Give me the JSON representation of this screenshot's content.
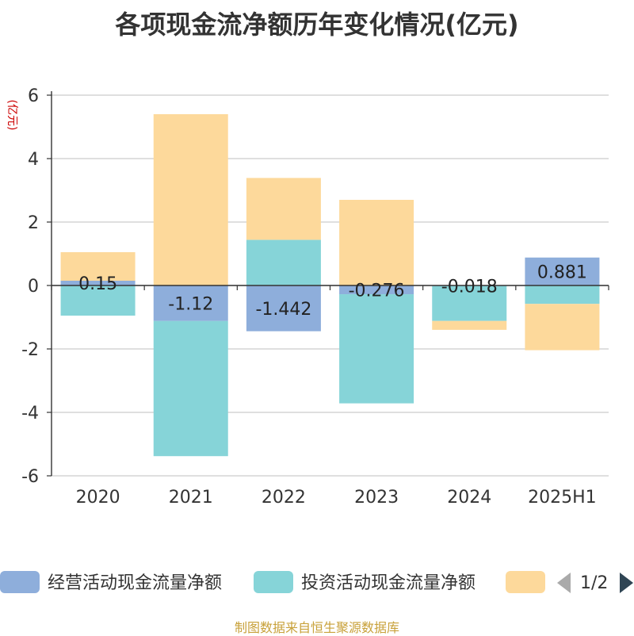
{
  "title": "各项现金流净额历年变化情况(亿元)",
  "source": "制图数据来自恒生聚源数据库",
  "legend": {
    "page": "1/2"
  },
  "chart_data": {
    "type": "bar",
    "stacked": true,
    "title": "各项现金流净额历年变化情况(亿元)",
    "ylabel": "(亿元)",
    "ylim": [
      -6,
      6
    ],
    "yticks": [
      6,
      4,
      2,
      0,
      -2,
      -4,
      -6
    ],
    "categories": [
      "2020",
      "2021",
      "2022",
      "2023",
      "2024",
      "2025H1"
    ],
    "grid": true,
    "legend_position": "bottom",
    "series": [
      {
        "name": "经营活动现金流量净额",
        "color": "#8eaedb",
        "values": [
          0.15,
          -1.12,
          -1.442,
          -0.276,
          -0.018,
          0.881
        ],
        "labels": [
          "0.15",
          "-1.12",
          "-1.442",
          "-0.276",
          "-0.018",
          "0.881"
        ]
      },
      {
        "name": "投资活动现金流量净额",
        "color": "#86d4d8",
        "values": [
          -0.95,
          -4.26,
          1.44,
          -3.44,
          -1.1,
          -0.58
        ]
      },
      {
        "name": "",
        "color": "#fdd99b",
        "values": [
          0.9,
          5.4,
          1.95,
          2.7,
          -0.28,
          -1.46
        ]
      }
    ]
  }
}
